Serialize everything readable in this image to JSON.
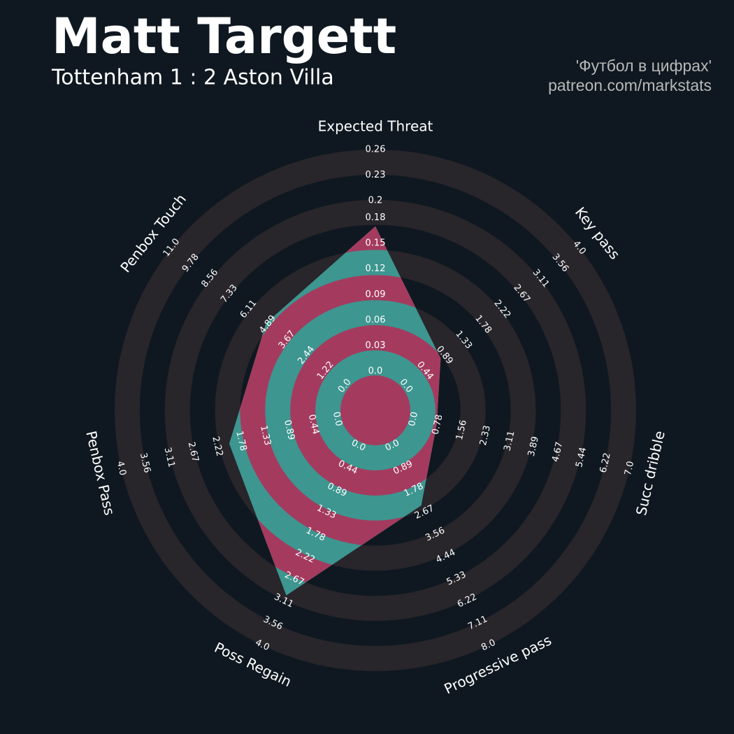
{
  "chart_data": {
    "type": "radar",
    "title": "Matt Targett",
    "subtitle": "Tottenham 1 : 2 Aston Villa",
    "credits": [
      "'Футбол в цифрах'",
      "patreon.com/markstats"
    ],
    "categories": [
      "Expected Threat",
      "Key pass",
      "Succ dribble",
      "Progressive pass",
      "Poss Regain",
      "Penbox Pass",
      "Penbox Touch"
    ],
    "values": [
      0.17,
      0.8,
      0.75,
      2.4,
      3,
      2,
      5
    ],
    "ticks": [
      [
        {
          "value": 0,
          "label": "0.0"
        },
        0.03,
        0.06,
        0.09,
        0.12,
        0.15,
        0.18,
        0.2,
        0.23,
        0.26
      ],
      [
        {
          "value": 0,
          "label": "0.0"
        },
        0.44,
        0.89,
        1.33,
        1.78,
        2.22,
        2.67,
        3.11,
        3.56,
        {
          "value": 4,
          "label": "4.0"
        }
      ],
      [
        {
          "value": 0,
          "label": "0.0"
        },
        0.78,
        1.56,
        2.33,
        3.11,
        3.89,
        4.67,
        5.44,
        6.22,
        {
          "value": 7,
          "label": "7.0"
        }
      ],
      [
        {
          "value": 0,
          "label": "0.0"
        },
        0.89,
        1.78,
        2.67,
        3.56,
        4.44,
        5.33,
        6.22,
        7.11,
        {
          "value": 8,
          "label": "8.0"
        }
      ],
      [
        {
          "value": 0,
          "label": "0.0"
        },
        0.44,
        0.89,
        1.33,
        1.78,
        2.22,
        2.67,
        3.11,
        3.56,
        {
          "value": 4,
          "label": "4.0"
        }
      ],
      [
        {
          "value": 0,
          "label": "0.0"
        },
        0.44,
        0.89,
        1.33,
        1.78,
        2.22,
        2.67,
        3.11,
        3.56,
        {
          "value": 4,
          "label": "4.0"
        }
      ],
      [
        {
          "value": 0,
          "label": "0.0"
        },
        1.22,
        2.44,
        3.67,
        4.89,
        6.11,
        7.33,
        8.56,
        9.78,
        {
          "value": 11,
          "label": "11.0"
        }
      ]
    ],
    "colors": {
      "background": "#0f1820",
      "ring": "#28252b",
      "fill": "#3d9690",
      "fill_alt": "#a43b5f"
    }
  }
}
